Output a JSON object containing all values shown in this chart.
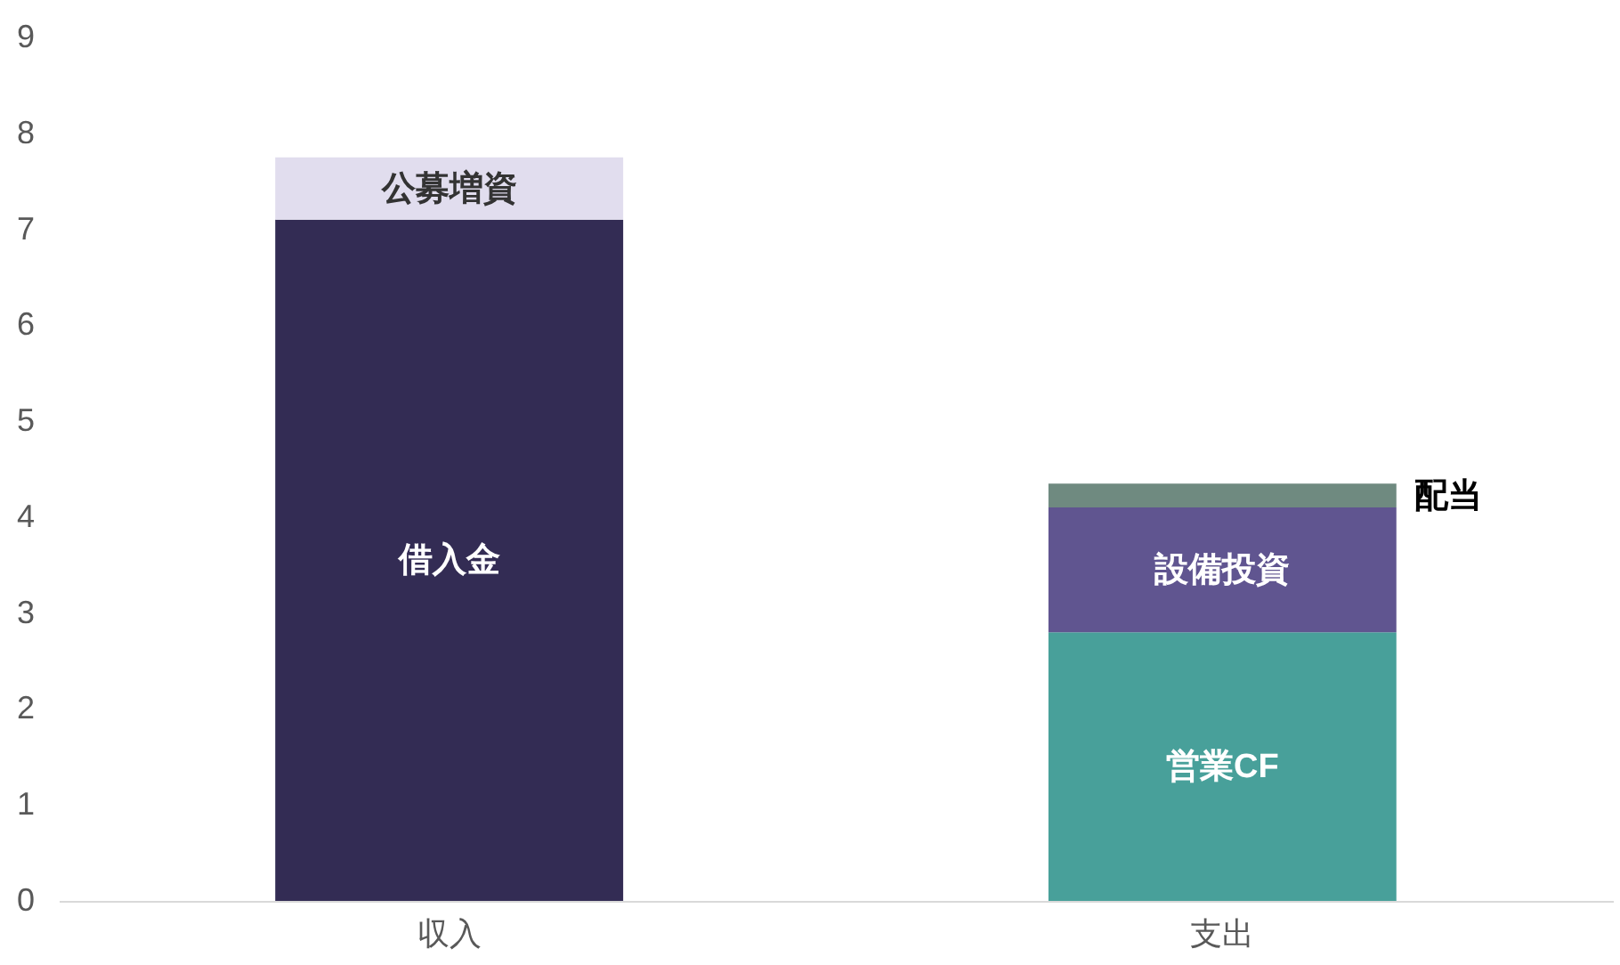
{
  "chart_data": {
    "type": "bar",
    "stacked": true,
    "categories": [
      "収入",
      "支出"
    ],
    "series": [
      {
        "name": "借入金",
        "color": "#332c54",
        "values": [
          7.1,
          null
        ]
      },
      {
        "name": "公募増資",
        "color": "#e1ddee",
        "values": [
          0.65,
          null
        ]
      },
      {
        "name": "営業CF",
        "color": "#48a09a",
        "values": [
          null,
          2.8
        ]
      },
      {
        "name": "設備投資",
        "color": "#605590",
        "values": [
          null,
          1.3
        ]
      },
      {
        "name": "配当",
        "color": "#6f8a80",
        "values": [
          null,
          0.25
        ]
      }
    ],
    "ylim": [
      0,
      9
    ],
    "yticks": [
      0,
      1,
      2,
      3,
      4,
      5,
      6,
      7,
      8,
      9
    ],
    "grid": false,
    "legend": false
  }
}
